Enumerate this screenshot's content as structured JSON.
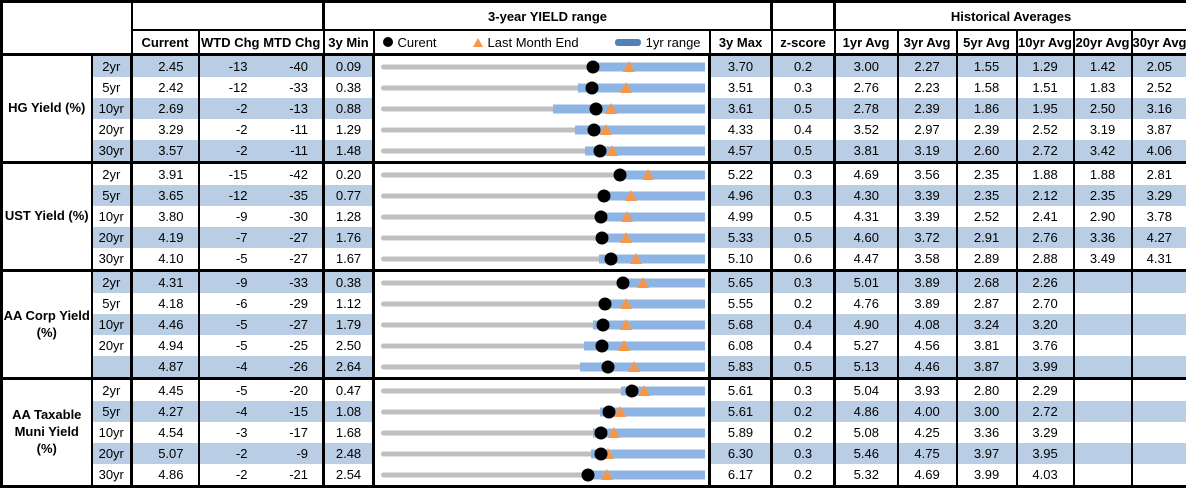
{
  "header": {
    "range_title": "3-year YIELD range",
    "hist_title": "Historical Averages",
    "col_current": "Current",
    "col_wtd": "WTD Chg",
    "col_mtd": "MTD Chg",
    "col_min": "3y Min",
    "col_max": "3y Max",
    "col_z": "z-score",
    "avg_cols": [
      "1yr Avg",
      "3yr Avg",
      "5yr Avg",
      "10yr Avg",
      "20yr Avg",
      "30yr Avg"
    ],
    "legend": {
      "current": "Curent",
      "last_month_end": "Last Month End",
      "range1yr": "1yr range"
    }
  },
  "colors": {
    "stripe": "#B9CDE5",
    "bar_1yr_range": "#8DB4E2",
    "track_3yr_range": "#BFBFBF",
    "marker_current": "#000000",
    "marker_last_month_end": "#F79646",
    "legend_bar_swatch": "#4F81BD",
    "border": "#000000"
  },
  "chart_data": {
    "type": "table",
    "title": "3-year YIELD range",
    "legend": [
      "Curent",
      "Last Month End",
      "1yr range"
    ],
    "columns": [
      "Current",
      "WTD Chg",
      "MTD Chg",
      "3y Min",
      "3-year YIELD range",
      "3y Max",
      "z-score",
      "1yr Avg",
      "3yr Avg",
      "5yr Avg",
      "10yr Avg",
      "20yr Avg",
      "30yr Avg"
    ],
    "groups": [
      {
        "name": "HG Yield (%)",
        "rows": [
          {
            "tenor": "2yr",
            "current": 2.45,
            "wtd_chg": -13,
            "mtd_chg": -40,
            "min_3y": 0.09,
            "max_3y": 3.7,
            "last_month_end": 2.85,
            "yr1_low": 2.43,
            "z_score": 0.2,
            "avgs": [
              3.0,
              2.27,
              1.55,
              1.29,
              1.42,
              2.05
            ]
          },
          {
            "tenor": "5yr",
            "current": 2.42,
            "wtd_chg": -12,
            "mtd_chg": -33,
            "min_3y": 0.38,
            "max_3y": 3.51,
            "last_month_end": 2.75,
            "yr1_low": 2.28,
            "z_score": 0.3,
            "avgs": [
              2.76,
              2.23,
              1.58,
              1.51,
              1.83,
              2.52
            ]
          },
          {
            "tenor": "10yr",
            "current": 2.69,
            "wtd_chg": -2,
            "mtd_chg": -13,
            "min_3y": 0.88,
            "max_3y": 3.61,
            "last_month_end": 2.82,
            "yr1_low": 2.33,
            "z_score": 0.5,
            "avgs": [
              2.78,
              2.39,
              1.86,
              1.95,
              2.5,
              3.16
            ]
          },
          {
            "tenor": "20yr",
            "current": 3.29,
            "wtd_chg": -2,
            "mtd_chg": -11,
            "min_3y": 1.29,
            "max_3y": 4.33,
            "last_month_end": 3.4,
            "yr1_low": 3.11,
            "z_score": 0.4,
            "avgs": [
              3.52,
              2.97,
              2.39,
              2.52,
              3.19,
              3.87
            ]
          },
          {
            "tenor": "30yr",
            "current": 3.57,
            "wtd_chg": -2,
            "mtd_chg": -11,
            "min_3y": 1.48,
            "max_3y": 4.57,
            "last_month_end": 3.68,
            "yr1_low": 3.43,
            "z_score": 0.5,
            "avgs": [
              3.81,
              3.19,
              2.6,
              2.72,
              3.42,
              4.06
            ]
          }
        ]
      },
      {
        "name": "UST Yield (%)",
        "rows": [
          {
            "tenor": "2yr",
            "current": 3.91,
            "wtd_chg": -15,
            "mtd_chg": -42,
            "min_3y": 0.2,
            "max_3y": 5.22,
            "last_month_end": 4.33,
            "yr1_low": 3.87,
            "z_score": 0.3,
            "avgs": [
              4.69,
              3.56,
              2.35,
              1.88,
              1.88,
              2.81
            ]
          },
          {
            "tenor": "5yr",
            "current": 3.65,
            "wtd_chg": -12,
            "mtd_chg": -35,
            "min_3y": 0.77,
            "max_3y": 4.96,
            "last_month_end": 4.0,
            "yr1_low": 3.63,
            "z_score": 0.3,
            "avgs": [
              4.3,
              3.39,
              2.35,
              2.12,
              2.35,
              3.29
            ]
          },
          {
            "tenor": "10yr",
            "current": 3.8,
            "wtd_chg": -9,
            "mtd_chg": -30,
            "min_3y": 1.28,
            "max_3y": 4.99,
            "last_month_end": 4.1,
            "yr1_low": 3.77,
            "z_score": 0.5,
            "avgs": [
              4.31,
              3.39,
              2.52,
              2.41,
              2.9,
              3.78
            ]
          },
          {
            "tenor": "20yr",
            "current": 4.19,
            "wtd_chg": -7,
            "mtd_chg": -27,
            "min_3y": 1.76,
            "max_3y": 5.33,
            "last_month_end": 4.46,
            "yr1_low": 4.16,
            "z_score": 0.5,
            "avgs": [
              4.6,
              3.72,
              2.91,
              2.76,
              3.36,
              4.27
            ]
          },
          {
            "tenor": "30yr",
            "current": 4.1,
            "wtd_chg": -5,
            "mtd_chg": -27,
            "min_3y": 1.67,
            "max_3y": 5.1,
            "last_month_end": 4.37,
            "yr1_low": 3.98,
            "z_score": 0.6,
            "avgs": [
              4.47,
              3.58,
              2.89,
              2.88,
              3.49,
              4.31
            ]
          }
        ]
      },
      {
        "name": "AA Corp Yield (%)",
        "rows": [
          {
            "tenor": "2yr",
            "current": 4.31,
            "wtd_chg": -9,
            "mtd_chg": -33,
            "min_3y": 0.38,
            "max_3y": 5.65,
            "last_month_end": 4.64,
            "yr1_low": 4.25,
            "z_score": 0.3,
            "avgs": [
              5.01,
              3.89,
              2.68,
              2.26,
              null,
              null
            ]
          },
          {
            "tenor": "5yr",
            "current": 4.18,
            "wtd_chg": -6,
            "mtd_chg": -29,
            "min_3y": 1.12,
            "max_3y": 5.55,
            "last_month_end": 4.47,
            "yr1_low": 4.15,
            "z_score": 0.2,
            "avgs": [
              4.76,
              3.89,
              2.87,
              2.7,
              null,
              null
            ]
          },
          {
            "tenor": "10yr",
            "current": 4.46,
            "wtd_chg": -5,
            "mtd_chg": -27,
            "min_3y": 1.79,
            "max_3y": 5.68,
            "last_month_end": 4.73,
            "yr1_low": 4.34,
            "z_score": 0.4,
            "avgs": [
              4.9,
              4.08,
              3.24,
              3.2,
              null,
              null
            ]
          },
          {
            "tenor": "20yr",
            "current": 4.94,
            "wtd_chg": -5,
            "mtd_chg": -25,
            "min_3y": 2.5,
            "max_3y": 6.08,
            "last_month_end": 5.19,
            "yr1_low": 4.74,
            "z_score": 0.4,
            "avgs": [
              5.27,
              4.56,
              3.81,
              3.76,
              null,
              null
            ]
          },
          {
            "tenor": "",
            "current": 4.87,
            "wtd_chg": -4,
            "mtd_chg": -26,
            "min_3y": 2.64,
            "max_3y": 5.83,
            "last_month_end": 5.13,
            "yr1_low": 4.6,
            "z_score": 0.5,
            "avgs": [
              5.13,
              4.46,
              3.87,
              3.99,
              null,
              null
            ]
          }
        ]
      },
      {
        "name": "AA Taxable Muni Yield (%)",
        "rows": [
          {
            "tenor": "2yr",
            "current": 4.45,
            "wtd_chg": -5,
            "mtd_chg": -20,
            "min_3y": 0.47,
            "max_3y": 5.61,
            "last_month_end": 4.65,
            "yr1_low": 4.28,
            "z_score": 0.3,
            "avgs": [
              5.04,
              3.93,
              2.8,
              2.29,
              null,
              null
            ]
          },
          {
            "tenor": "5yr",
            "current": 4.27,
            "wtd_chg": -4,
            "mtd_chg": -15,
            "min_3y": 1.08,
            "max_3y": 5.61,
            "last_month_end": 4.42,
            "yr1_low": 4.14,
            "z_score": 0.2,
            "avgs": [
              4.86,
              4.0,
              3.0,
              2.72,
              null,
              null
            ]
          },
          {
            "tenor": "10yr",
            "current": 4.54,
            "wtd_chg": -3,
            "mtd_chg": -17,
            "min_3y": 1.68,
            "max_3y": 5.89,
            "last_month_end": 4.71,
            "yr1_low": 4.44,
            "z_score": 0.2,
            "avgs": [
              5.08,
              4.25,
              3.36,
              3.29,
              null,
              null
            ]
          },
          {
            "tenor": "20yr",
            "current": 5.07,
            "wtd_chg": -2,
            "mtd_chg": -9,
            "min_3y": 2.48,
            "max_3y": 6.3,
            "last_month_end": 5.16,
            "yr1_low": 4.95,
            "z_score": 0.3,
            "avgs": [
              5.46,
              4.75,
              3.97,
              3.95,
              null,
              null
            ]
          },
          {
            "tenor": "30yr",
            "current": 4.86,
            "wtd_chg": -2,
            "mtd_chg": -21,
            "min_3y": 2.54,
            "max_3y": 6.17,
            "last_month_end": 5.07,
            "yr1_low": 4.81,
            "z_score": 0.2,
            "avgs": [
              5.32,
              4.69,
              3.99,
              4.03,
              null,
              null
            ]
          }
        ]
      }
    ]
  }
}
